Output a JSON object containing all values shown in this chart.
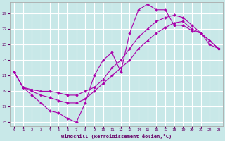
{
  "xlabel": "Windchill (Refroidissement éolien,°C)",
  "background_color": "#c8e8e8",
  "grid_color": "#ffffff",
  "line_color": "#aa00aa",
  "xlim": [
    -0.5,
    23.5
  ],
  "ylim": [
    14.5,
    30.5
  ],
  "yticks": [
    15,
    17,
    19,
    21,
    23,
    25,
    27,
    29
  ],
  "xticks": [
    0,
    1,
    2,
    3,
    4,
    5,
    6,
    7,
    8,
    9,
    10,
    11,
    12,
    13,
    14,
    15,
    16,
    17,
    18,
    19,
    20,
    21,
    22,
    23
  ],
  "line1_x": [
    0,
    1,
    2,
    3,
    4,
    5,
    6,
    7,
    8,
    9,
    10,
    11,
    12,
    13,
    14,
    15,
    16,
    17,
    18,
    19,
    20,
    21,
    22,
    23
  ],
  "line1_y": [
    21.5,
    19.5,
    18.5,
    17.5,
    16.5,
    16.2,
    15.5,
    15.0,
    17.5,
    21.0,
    23.0,
    24.0,
    21.5,
    26.5,
    29.5,
    30.2,
    29.5,
    29.5,
    27.5,
    27.5,
    26.8,
    26.5,
    25.5,
    24.5
  ],
  "line2_x": [
    0,
    1,
    2,
    3,
    4,
    5,
    6,
    7,
    8,
    9,
    10,
    11,
    12,
    13,
    14,
    15,
    16,
    17,
    18,
    19,
    20,
    21,
    22,
    23
  ],
  "line2_y": [
    21.5,
    19.5,
    19.0,
    18.5,
    18.2,
    17.8,
    17.5,
    17.5,
    18.0,
    19.0,
    20.0,
    21.0,
    22.0,
    23.0,
    24.5,
    25.5,
    26.5,
    27.2,
    27.8,
    28.0,
    27.0,
    26.5,
    25.0,
    24.5
  ],
  "line3_x": [
    0,
    1,
    2,
    3,
    4,
    5,
    6,
    7,
    8,
    9,
    10,
    11,
    12,
    13,
    14,
    15,
    16,
    17,
    18,
    19,
    20,
    21,
    22,
    23
  ],
  "line3_y": [
    21.5,
    19.5,
    19.2,
    19.0,
    19.0,
    18.8,
    18.5,
    18.5,
    19.0,
    19.5,
    20.5,
    22.0,
    23.0,
    24.5,
    26.0,
    27.0,
    28.0,
    28.5,
    28.8,
    28.5,
    27.5,
    26.5,
    25.5,
    24.5
  ]
}
